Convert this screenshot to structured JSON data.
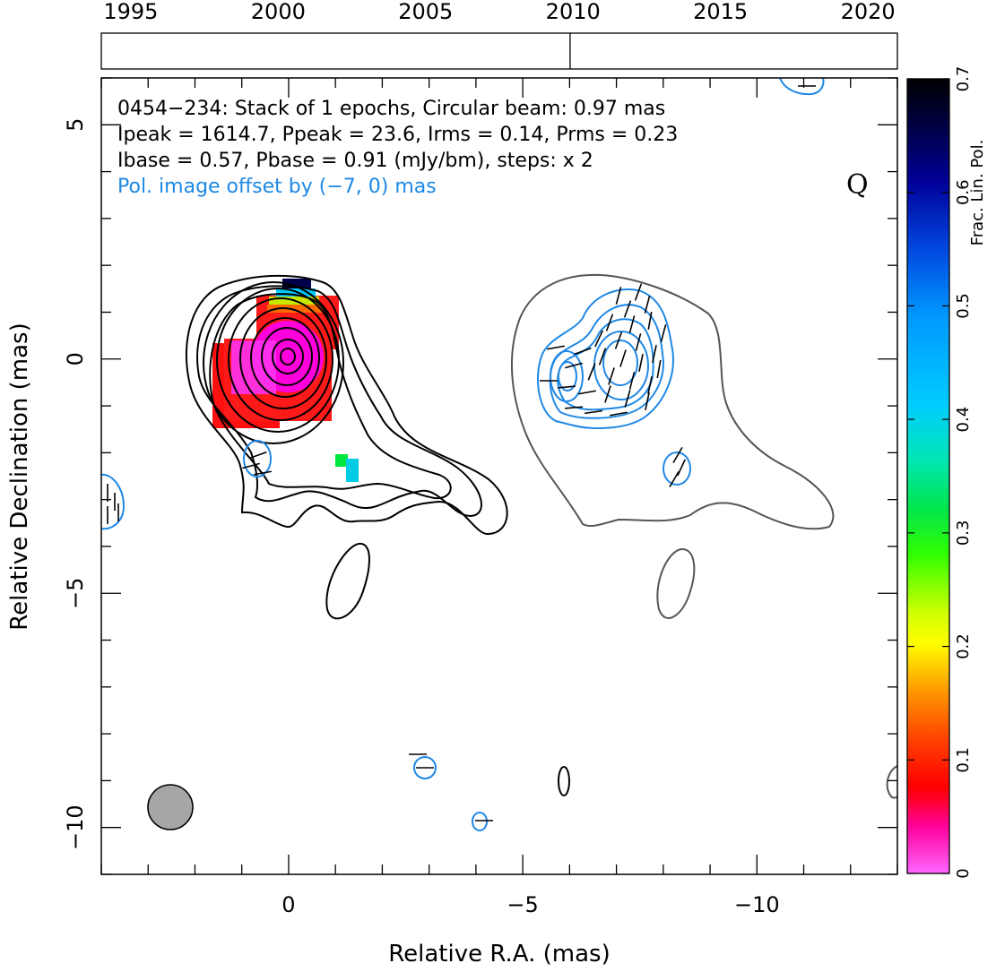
{
  "chart_data": {
    "type": "contour-map",
    "source": "0454−234",
    "band": "Q",
    "info_lines": [
      {
        "text": "0454−234: Stack of 1 epochs, Circular beam: 0.97 mas",
        "color": "#000000"
      },
      {
        "text": "Ipeak = 1614.7, Ppeak = 23.6, Irms = 0.14, Prms = 0.23",
        "color": "#000000"
      },
      {
        "text": "Ibase = 0.57, Pbase = 0.91 (mJy/bm), steps: x 2",
        "color": "#000000"
      },
      {
        "text": "Pol. image offset by (−7, 0) mas",
        "color": "#1e88e5"
      }
    ],
    "xlabel": "Relative R.A. (mas)",
    "ylabel": "Relative Declination (mas)",
    "xlim": [
      4,
      -13
    ],
    "ylim": [
      -11,
      6
    ],
    "x_ticks": [
      {
        "v": 0,
        "t": "0"
      },
      {
        "v": -5,
        "t": "−5"
      },
      {
        "v": -10,
        "t": "−10"
      }
    ],
    "y_ticks": [
      {
        "v": 5,
        "t": "5"
      },
      {
        "v": 0,
        "t": "0"
      },
      {
        "v": -5,
        "t": "−5"
      },
      {
        "v": -10,
        "t": "−10"
      }
    ],
    "timeline": {
      "years": [
        "1995",
        "2000",
        "2005",
        "2010",
        "2015",
        "2020"
      ],
      "range": [
        1994,
        2021
      ],
      "epochs": [
        2009.9
      ]
    },
    "colorbar": {
      "label": "Frac. Lin. Pol.",
      "range": [
        0,
        0.7
      ],
      "ticks": [
        "0",
        "0.1",
        "0.2",
        "0.3",
        "0.4",
        "0.5",
        "0.6",
        "0.7"
      ]
    },
    "beam_mas": 0.97,
    "colors": {
      "stokes_i_contour": "#000000",
      "pol_i_contour": "#555555",
      "pol_contour": "#1e88e5",
      "beam_fill": "#a6a6a6"
    }
  }
}
